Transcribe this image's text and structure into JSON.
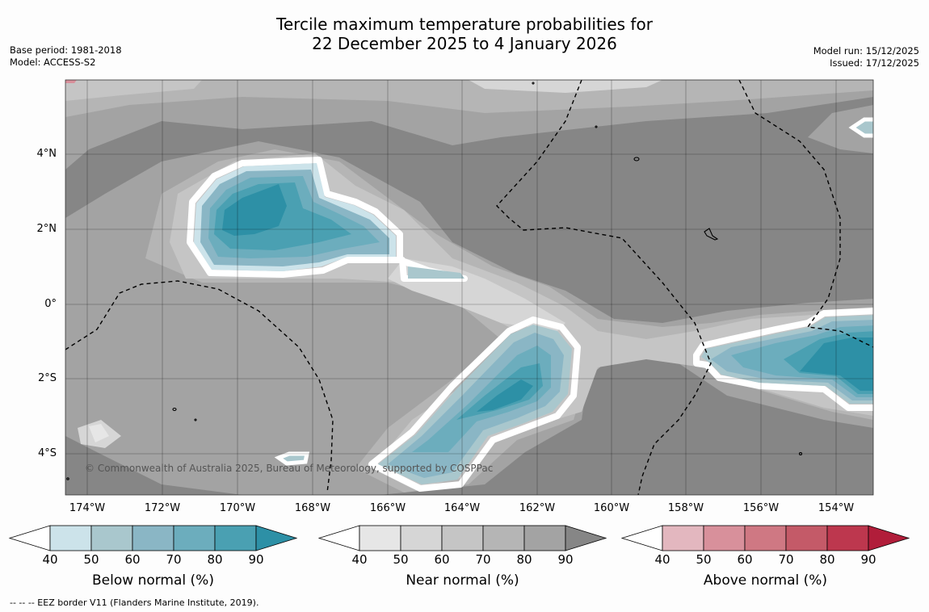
{
  "header": {
    "title_line1": "Tercile maximum temperature probabilities for",
    "title_line2": "22 December 2025 to 4 January 2026",
    "base_period": "Base period: 1981-2018",
    "model": "Model: ACCESS-S2",
    "model_run": "Model run: 15/12/2025",
    "issued": "Issued: 17/12/2025"
  },
  "map": {
    "lat_labels": [
      "4°N",
      "2°N",
      "0°",
      "2°S",
      "4°S"
    ],
    "lon_labels": [
      "174°W",
      "172°W",
      "170°W",
      "168°W",
      "166°W",
      "164°W",
      "162°W",
      "160°W",
      "158°W",
      "156°W",
      "154°W"
    ],
    "copyright": "© Commonwealth of Australia 2025, Bureau of Meteorology, supported by COSPPac"
  },
  "colorbars": [
    {
      "name": "below",
      "label": "Below normal (%)",
      "ticks": [
        "40",
        "50",
        "60",
        "70",
        "80",
        "90"
      ],
      "colors": [
        "#ffffff",
        "#cce3ea",
        "#a9c7cd",
        "#8ab6c5",
        "#6cadbd",
        "#4aa0b2",
        "#2d90a6"
      ]
    },
    {
      "name": "near",
      "label": "Near normal (%)",
      "ticks": [
        "40",
        "50",
        "60",
        "70",
        "80",
        "90"
      ],
      "colors": [
        "#ffffff",
        "#e6e6e6",
        "#d6d6d6",
        "#c5c5c5",
        "#b5b5b5",
        "#a3a3a3",
        "#868686"
      ]
    },
    {
      "name": "above",
      "label": "Above normal (%)",
      "ticks": [
        "40",
        "50",
        "60",
        "70",
        "80",
        "90"
      ],
      "colors": [
        "#ffffff",
        "#e3b7bf",
        "#d8909b",
        "#cf7883",
        "#c45a68",
        "#bd374e",
        "#b11d3a"
      ]
    }
  ],
  "footnote": "--  --  -- EEZ border V11 (Flanders Marine Institute, 2019)."
}
